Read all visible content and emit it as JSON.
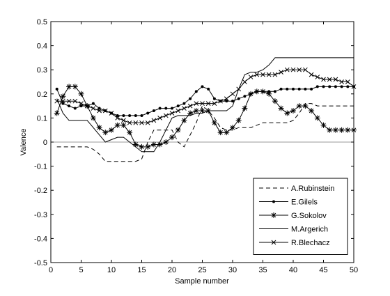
{
  "chart_data": {
    "type": "line",
    "xlabel": "Sample number",
    "ylabel": "Valence",
    "xlim": [
      0,
      50
    ],
    "ylim": [
      -0.5,
      0.5
    ],
    "xticks": [
      0,
      5,
      10,
      15,
      20,
      25,
      30,
      35,
      40,
      45,
      50
    ],
    "yticks": [
      -0.5,
      -0.4,
      -0.3,
      -0.2,
      -0.1,
      0,
      0.1,
      0.2,
      0.3,
      0.4,
      0.5
    ],
    "x_tick_labels": [
      "0",
      "5",
      "10",
      "15",
      "20",
      "25",
      "30",
      "35",
      "40",
      "45",
      "50"
    ],
    "y_tick_labels": [
      "-0.5",
      "-0.4",
      "-0.3",
      "-0.2",
      "-0.1",
      "0",
      "0.1",
      "0.2",
      "0.3",
      "0.4",
      "0.5"
    ],
    "zero_line": true,
    "grid": false,
    "legend_position": "bottom-right",
    "x": [
      1,
      2,
      3,
      4,
      5,
      6,
      7,
      8,
      9,
      10,
      11,
      12,
      13,
      14,
      15,
      16,
      17,
      18,
      19,
      20,
      21,
      22,
      23,
      24,
      25,
      26,
      27,
      28,
      29,
      30,
      31,
      32,
      33,
      34,
      35,
      36,
      37,
      38,
      39,
      40,
      41,
      42,
      43,
      44,
      45,
      46,
      47,
      48,
      49,
      50
    ],
    "series": [
      {
        "name": "A.Rubinstein",
        "style": "dashed",
        "marker": "none",
        "values": [
          -0.02,
          -0.02,
          -0.02,
          -0.02,
          -0.02,
          -0.02,
          -0.03,
          -0.05,
          -0.08,
          -0.08,
          -0.08,
          -0.08,
          -0.08,
          -0.08,
          -0.07,
          0.0,
          0.05,
          0.05,
          0.05,
          0.05,
          0.0,
          -0.02,
          0.03,
          0.08,
          0.15,
          0.13,
          0.1,
          0.06,
          0.05,
          0.05,
          0.06,
          0.06,
          0.06,
          0.07,
          0.08,
          0.08,
          0.08,
          0.08,
          0.08,
          0.09,
          0.12,
          0.16,
          0.16,
          0.15,
          0.15,
          0.15,
          0.15,
          0.15,
          0.15,
          0.15
        ]
      },
      {
        "name": "E.Gilels",
        "style": "solid",
        "marker": "dot",
        "values": [
          0.22,
          0.16,
          0.15,
          0.14,
          0.15,
          0.15,
          0.16,
          0.14,
          0.13,
          0.12,
          0.11,
          0.11,
          0.11,
          0.11,
          0.11,
          0.12,
          0.13,
          0.14,
          0.14,
          0.14,
          0.15,
          0.16,
          0.18,
          0.21,
          0.23,
          0.22,
          0.18,
          0.17,
          0.17,
          0.17,
          0.18,
          0.19,
          0.2,
          0.21,
          0.21,
          0.21,
          0.21,
          0.22,
          0.22,
          0.22,
          0.22,
          0.22,
          0.22,
          0.23,
          0.23,
          0.23,
          0.23,
          0.23,
          0.23,
          0.23
        ]
      },
      {
        "name": "G.Sokolov",
        "style": "solid",
        "marker": "star",
        "values": [
          0.12,
          0.19,
          0.23,
          0.23,
          0.2,
          0.15,
          0.1,
          0.06,
          0.04,
          0.05,
          0.07,
          0.07,
          0.04,
          -0.01,
          -0.02,
          -0.02,
          -0.01,
          -0.01,
          0.0,
          0.02,
          0.05,
          0.09,
          0.12,
          0.13,
          0.13,
          0.13,
          0.08,
          0.04,
          0.04,
          0.06,
          0.09,
          0.14,
          0.2,
          0.21,
          0.21,
          0.2,
          0.17,
          0.14,
          0.12,
          0.13,
          0.15,
          0.15,
          0.13,
          0.1,
          0.07,
          0.05,
          0.05,
          0.05,
          0.05,
          0.05
        ]
      },
      {
        "name": "M.Argerich",
        "style": "solid",
        "marker": "none",
        "values": [
          0.18,
          0.12,
          0.09,
          0.09,
          0.09,
          0.09,
          0.06,
          0.03,
          0.0,
          0.01,
          0.02,
          0.02,
          0.0,
          -0.02,
          -0.04,
          -0.04,
          -0.04,
          0.0,
          0.05,
          0.1,
          0.11,
          0.11,
          0.11,
          0.12,
          0.12,
          0.13,
          0.13,
          0.13,
          0.13,
          0.15,
          0.22,
          0.28,
          0.29,
          0.29,
          0.3,
          0.32,
          0.35,
          0.35,
          0.35,
          0.35,
          0.35,
          0.35,
          0.35,
          0.35,
          0.35,
          0.35,
          0.35,
          0.35,
          0.35,
          0.35
        ]
      },
      {
        "name": "R.Blechacz",
        "style": "solid",
        "marker": "x",
        "values": [
          0.17,
          0.17,
          0.17,
          0.17,
          0.16,
          0.15,
          0.14,
          0.13,
          0.13,
          0.12,
          0.1,
          0.09,
          0.08,
          0.08,
          0.08,
          0.08,
          0.09,
          0.1,
          0.11,
          0.12,
          0.13,
          0.14,
          0.15,
          0.16,
          0.16,
          0.16,
          0.16,
          0.17,
          0.18,
          0.2,
          0.22,
          0.25,
          0.27,
          0.28,
          0.28,
          0.28,
          0.28,
          0.29,
          0.3,
          0.3,
          0.3,
          0.3,
          0.28,
          0.27,
          0.26,
          0.26,
          0.26,
          0.25,
          0.25,
          0.23
        ]
      }
    ]
  }
}
